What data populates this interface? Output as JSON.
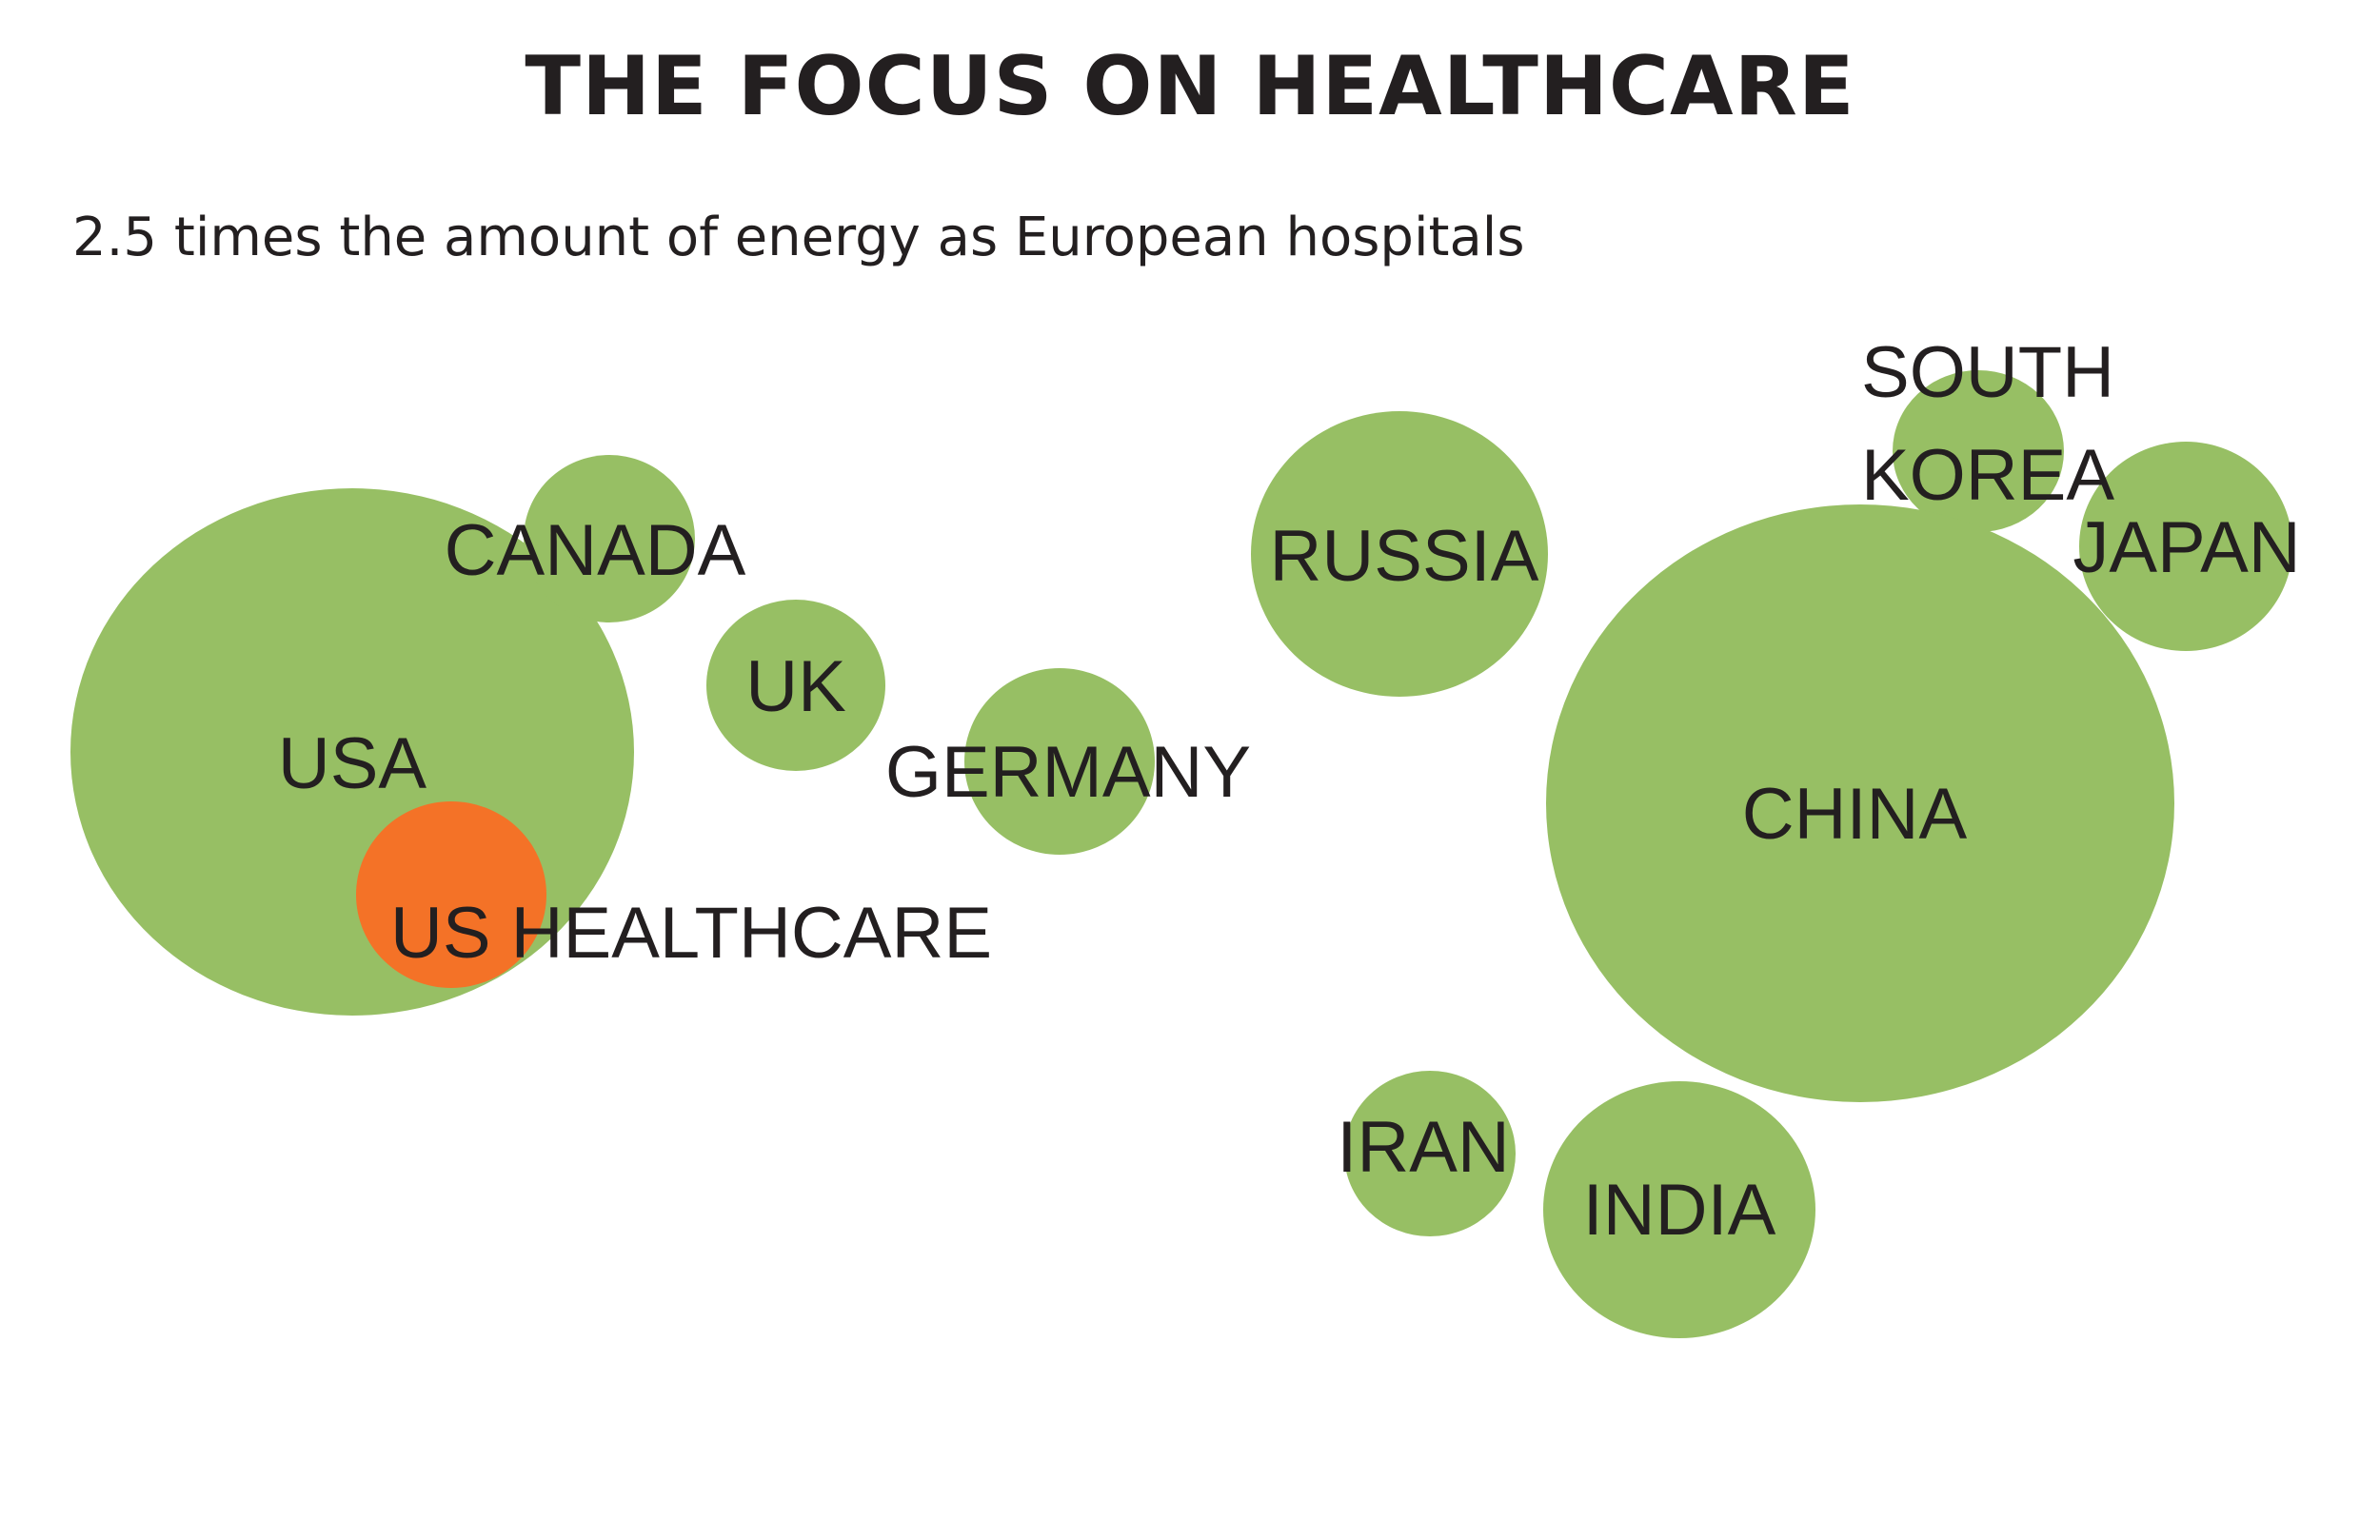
{
  "chart_data": {
    "type": "bubble",
    "title": "THE FOCUS ON HEALTHCARE",
    "subtitle": "2.5 times the amount of energy as European hospitals",
    "colors": {
      "country": "#97bf64",
      "highlight": "#f47227",
      "label": "#231f20"
    },
    "bubbles": [
      {
        "id": "usa",
        "label": "USA",
        "size": 100,
        "highlight": false
      },
      {
        "id": "canada",
        "label": "CANADA",
        "size": 9,
        "highlight": false
      },
      {
        "id": "uk",
        "label": "UK",
        "size": 11,
        "highlight": false
      },
      {
        "id": "germany",
        "label": "GERMANY",
        "size": 12,
        "highlight": false
      },
      {
        "id": "russia",
        "label": "RUSSIA",
        "size": 27,
        "highlight": false
      },
      {
        "id": "south-korea",
        "label": "SOUTH KOREA",
        "label_lines": [
          "SOUTH",
          "KOREA"
        ],
        "size": 8,
        "highlight": false
      },
      {
        "id": "japan",
        "label": "JAPAN",
        "size": 13,
        "highlight": false
      },
      {
        "id": "china",
        "label": "CHINA",
        "size": 122,
        "highlight": false
      },
      {
        "id": "iran",
        "label": "IRAN",
        "size": 9,
        "highlight": false
      },
      {
        "id": "india",
        "label": "INDIA",
        "size": 23,
        "highlight": false
      },
      {
        "id": "us-healthcare",
        "label": "US HEALTHCARE",
        "size": 12,
        "highlight": true
      }
    ]
  }
}
